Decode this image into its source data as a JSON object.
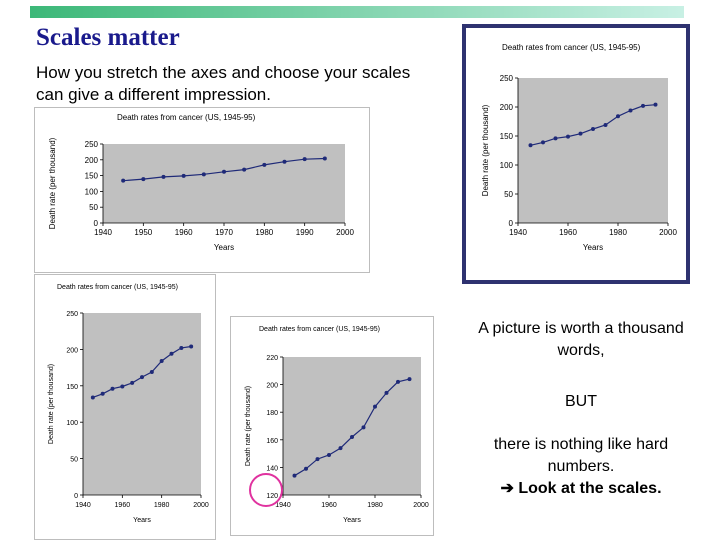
{
  "slide": {
    "title": "Scales matter",
    "subtitle": "How you stretch the axes and choose your scales can give a different impression.",
    "text1": "A picture is worth a thousand words,",
    "text2": "BUT",
    "text3": "there is nothing like hard numbers.",
    "text4_arrow": "➔",
    "text4": "Look at the scales.",
    "colors": {
      "title": "#1a1a8c",
      "plot_bg": "#c0c0c0",
      "series": "#1f2a78",
      "frame": "#2e3270",
      "highlight": "#e0329f"
    }
  },
  "chart_data": [
    {
      "type": "line",
      "title": "Death rates from cancer (US, 1945-95)",
      "xlabel": "Years",
      "ylabel": "Death rate (per thousand)",
      "xlim": [
        1940,
        2000
      ],
      "ylim": [
        0,
        250
      ],
      "xticks": [
        1940,
        1950,
        1960,
        1970,
        1980,
        1990,
        2000
      ],
      "yticks": [
        0,
        50,
        100,
        150,
        200,
        250
      ],
      "x": [
        1945,
        1950,
        1955,
        1960,
        1965,
        1970,
        1975,
        1980,
        1985,
        1990,
        1995
      ],
      "y": [
        134,
        139,
        146,
        149,
        154,
        162,
        169,
        184,
        194,
        202,
        204
      ],
      "grid": false
    },
    {
      "type": "line",
      "title": "Death rates from cancer (US, 1945-95)",
      "xlabel": "Years",
      "ylabel": "Death rate (per thousand)",
      "xlim": [
        1940,
        2000
      ],
      "ylim": [
        0,
        250
      ],
      "xticks": [
        1940,
        1960,
        1980,
        2000
      ],
      "yticks": [
        0,
        50,
        100,
        150,
        200,
        250
      ],
      "x": [
        1945,
        1950,
        1955,
        1960,
        1965,
        1970,
        1975,
        1980,
        1985,
        1990,
        1995
      ],
      "y": [
        134,
        139,
        146,
        149,
        154,
        162,
        169,
        184,
        194,
        202,
        204
      ],
      "grid": false
    },
    {
      "type": "line",
      "title": "Death rates from cancer (US, 1945-95)",
      "xlabel": "Years",
      "ylabel": "Death rate (per thousand)",
      "xlim": [
        1940,
        2000
      ],
      "ylim": [
        0,
        250
      ],
      "xticks": [
        1940,
        1960,
        1980,
        2000
      ],
      "yticks": [
        0,
        50,
        100,
        150,
        200,
        250
      ],
      "x": [
        1945,
        1950,
        1955,
        1960,
        1965,
        1970,
        1975,
        1980,
        1985,
        1990,
        1995
      ],
      "y": [
        134,
        139,
        146,
        149,
        154,
        162,
        169,
        184,
        194,
        202,
        204
      ],
      "grid": false
    },
    {
      "type": "line",
      "title": "Death rates from cancer (US, 1945-95)",
      "xlabel": "Years",
      "ylabel": "Death rate (per thousand)",
      "xlim": [
        1940,
        2000
      ],
      "ylim": [
        120,
        220
      ],
      "xticks": [
        1940,
        1960,
        1980,
        2000
      ],
      "yticks": [
        120,
        140,
        160,
        180,
        200,
        220
      ],
      "x": [
        1945,
        1950,
        1955,
        1960,
        1965,
        1970,
        1975,
        1980,
        1985,
        1990,
        1995
      ],
      "y": [
        134,
        139,
        146,
        149,
        154,
        162,
        169,
        184,
        194,
        202,
        204
      ],
      "grid": false
    }
  ]
}
